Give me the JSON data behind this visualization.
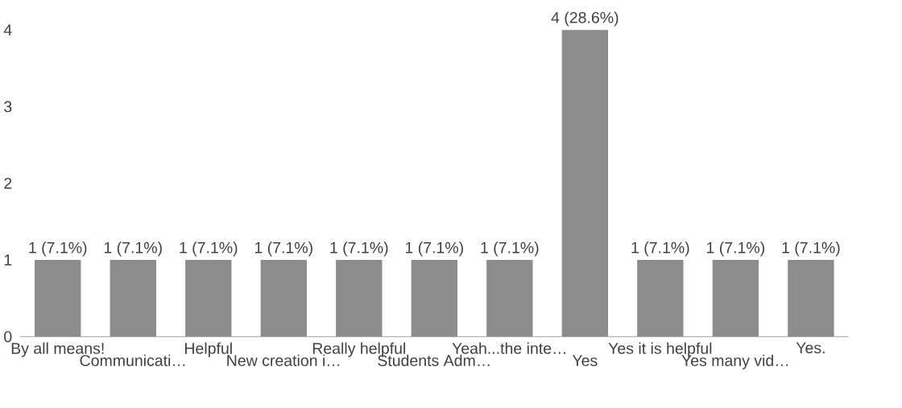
{
  "chart_data": {
    "type": "bar",
    "categories": [
      "By all means!",
      "Communicati…",
      "Helpful",
      "New creation i…",
      "Really helpful",
      "Students Adm…",
      "Yeah...the inte…",
      "Yes",
      "Yes it is helpful",
      "Yes many vid…",
      "Yes."
    ],
    "values": [
      1,
      1,
      1,
      1,
      1,
      1,
      1,
      4,
      1,
      1,
      1
    ],
    "value_labels": [
      "1 (7.1%)",
      "1 (7.1%)",
      "1 (7.1%)",
      "1 (7.1%)",
      "1 (7.1%)",
      "1 (7.1%)",
      "1 (7.1%)",
      "4 (28.6%)",
      "1 (7.1%)",
      "1 (7.1%)",
      "1 (7.1%)"
    ],
    "color": "#8c8c8c",
    "ylim": [
      0,
      4
    ],
    "yticks": [
      0,
      1,
      2,
      3,
      4
    ],
    "grid": false
  }
}
